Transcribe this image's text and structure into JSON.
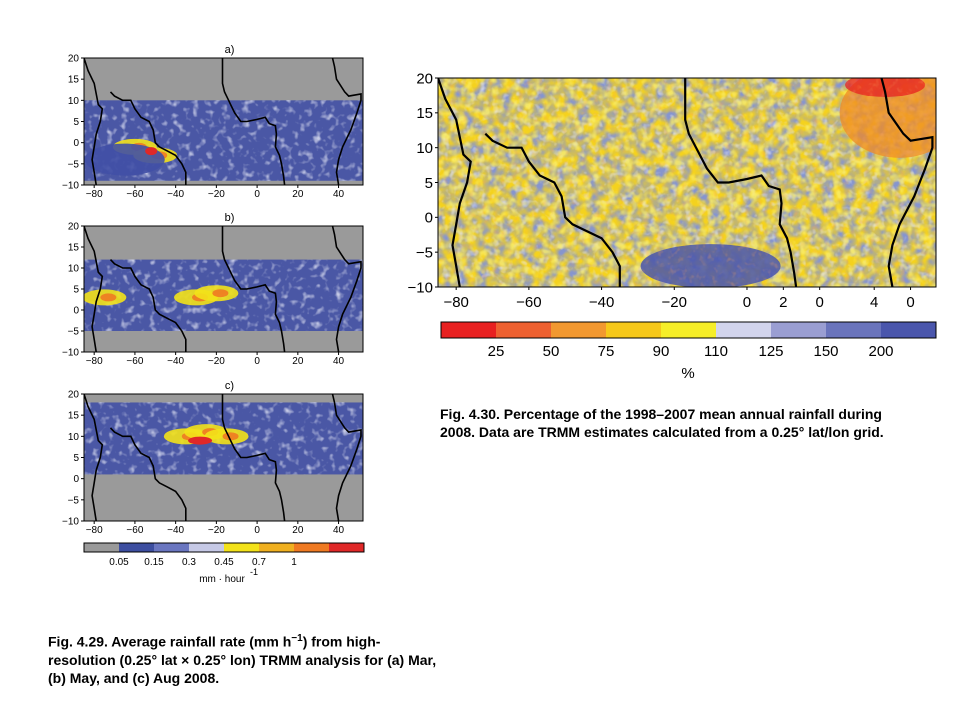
{
  "chart_data": [
    {
      "type": "heatmap",
      "panel_label": "a)",
      "xticks": [
        -80,
        -60,
        -40,
        -20,
        0,
        20,
        40
      ],
      "yticks": [
        -10,
        -5,
        0,
        5,
        10,
        15,
        20
      ],
      "xlim": [
        -85,
        52
      ],
      "ylim": [
        -10,
        20
      ]
    },
    {
      "type": "heatmap",
      "panel_label": "b)",
      "xticks": [
        -80,
        -60,
        -40,
        -20,
        0,
        20,
        40
      ],
      "yticks": [
        -10,
        -5,
        0,
        5,
        10,
        15,
        20
      ],
      "xlim": [
        -85,
        52
      ],
      "ylim": [
        -10,
        20
      ]
    },
    {
      "type": "heatmap",
      "panel_label": "c)",
      "xticks": [
        -80,
        -60,
        -40,
        -20,
        0,
        20,
        40
      ],
      "yticks": [
        -10,
        -5,
        0,
        5,
        10,
        15,
        20
      ],
      "xlim": [
        -85,
        52
      ],
      "ylim": [
        -10,
        20
      ],
      "colorbar": {
        "ticks": [
          "0.05",
          "0.15",
          "0.3",
          "0.45",
          "0.7",
          "1"
        ],
        "unit": "mm · hour",
        "unit_exponent": "-1",
        "colors": [
          "#9a9a9a",
          "#3d4ea0",
          "#6a76c0",
          "#c6c9e6",
          "#f3e21a",
          "#f0b020",
          "#ef7a22",
          "#e02828"
        ]
      }
    },
    {
      "type": "heatmap",
      "xticks": [
        "-80",
        "-60",
        "-40",
        "-20",
        "0",
        "2",
        "0",
        "4",
        "0"
      ],
      "yticks": [
        -10,
        -5,
        0,
        5,
        10,
        15,
        20
      ],
      "xlim": [
        -85,
        52
      ],
      "ylim": [
        -10,
        20
      ],
      "colorbar": {
        "ticks": [
          "25",
          "50",
          "75",
          "90",
          "110",
          "125",
          "150",
          "200"
        ],
        "unit": "%",
        "colors": [
          "#e82020",
          "#ee6030",
          "#f29830",
          "#f6c81a",
          "#f6ee28",
          "#d2d4ec",
          "#9a9ed2",
          "#6a74bc",
          "#4a56ac"
        ]
      }
    }
  ],
  "captions": {
    "fig29_main": "Fig. 4.29. Average rainfall rate (mm h",
    "fig29_sup": "−1",
    "fig29_rest": ") from high-resolution (0.25° lat × 0.25° lon) TRMM analysis for (a) Mar, (b) May, and (c) Aug 2008.",
    "fig30": "Fig. 4.30. Percentage of the 1998–2007 mean annual rainfall during 2008. Data are TRMM estimates calculated from a 0.25° lat/lon grid."
  }
}
